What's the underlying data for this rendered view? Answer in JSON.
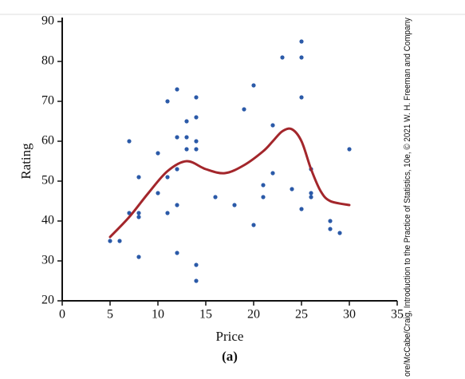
{
  "chart_data": {
    "type": "scatter",
    "x_label": "Price",
    "y_label": "Rating",
    "caption": "(a)",
    "credit": "ore/McCabe/Craig, Introduction to the Practice of Statistics, 10e, © 2021 W. H. Freeman and Company",
    "xlim": [
      0,
      35
    ],
    "ylim": [
      20,
      91
    ],
    "xticks": [
      0,
      5,
      10,
      15,
      20,
      25,
      30,
      35
    ],
    "yticks": [
      20,
      30,
      40,
      50,
      60,
      70,
      80,
      90
    ],
    "series": [
      {
        "type": "scatter",
        "color": "#2b5aa8",
        "x": [
          5,
          6,
          7,
          7,
          8,
          8,
          8,
          8,
          10,
          10,
          11,
          11,
          11,
          12,
          12,
          12,
          12,
          12,
          13,
          13,
          13,
          14,
          14,
          14,
          14,
          14,
          14,
          16,
          18,
          19,
          20,
          20,
          21,
          21,
          22,
          22,
          23,
          24,
          25,
          25,
          25,
          25,
          26,
          26,
          26,
          28,
          28,
          29,
          30
        ],
        "values": [
          35,
          35,
          42,
          60,
          51,
          42,
          41,
          31,
          57,
          47,
          70,
          51,
          42,
          73,
          61,
          53,
          44,
          32,
          65,
          61,
          58,
          71,
          66,
          60,
          58,
          29,
          25,
          46,
          44,
          68,
          74,
          39,
          49,
          46,
          64,
          52,
          81,
          48,
          85,
          81,
          71,
          43,
          53,
          47,
          46,
          40,
          38,
          37,
          58
        ]
      },
      {
        "type": "line",
        "color": "#a3262b",
        "x": [
          5,
          7,
          9,
          11,
          13,
          15,
          17,
          19,
          21,
          22,
          23,
          24,
          25,
          26,
          27,
          28,
          30
        ],
        "values": [
          36,
          41,
          47,
          52.5,
          55,
          53,
          52,
          54,
          57.5,
          60,
          62.5,
          63,
          60,
          53,
          47.5,
          45,
          44
        ]
      }
    ]
  }
}
